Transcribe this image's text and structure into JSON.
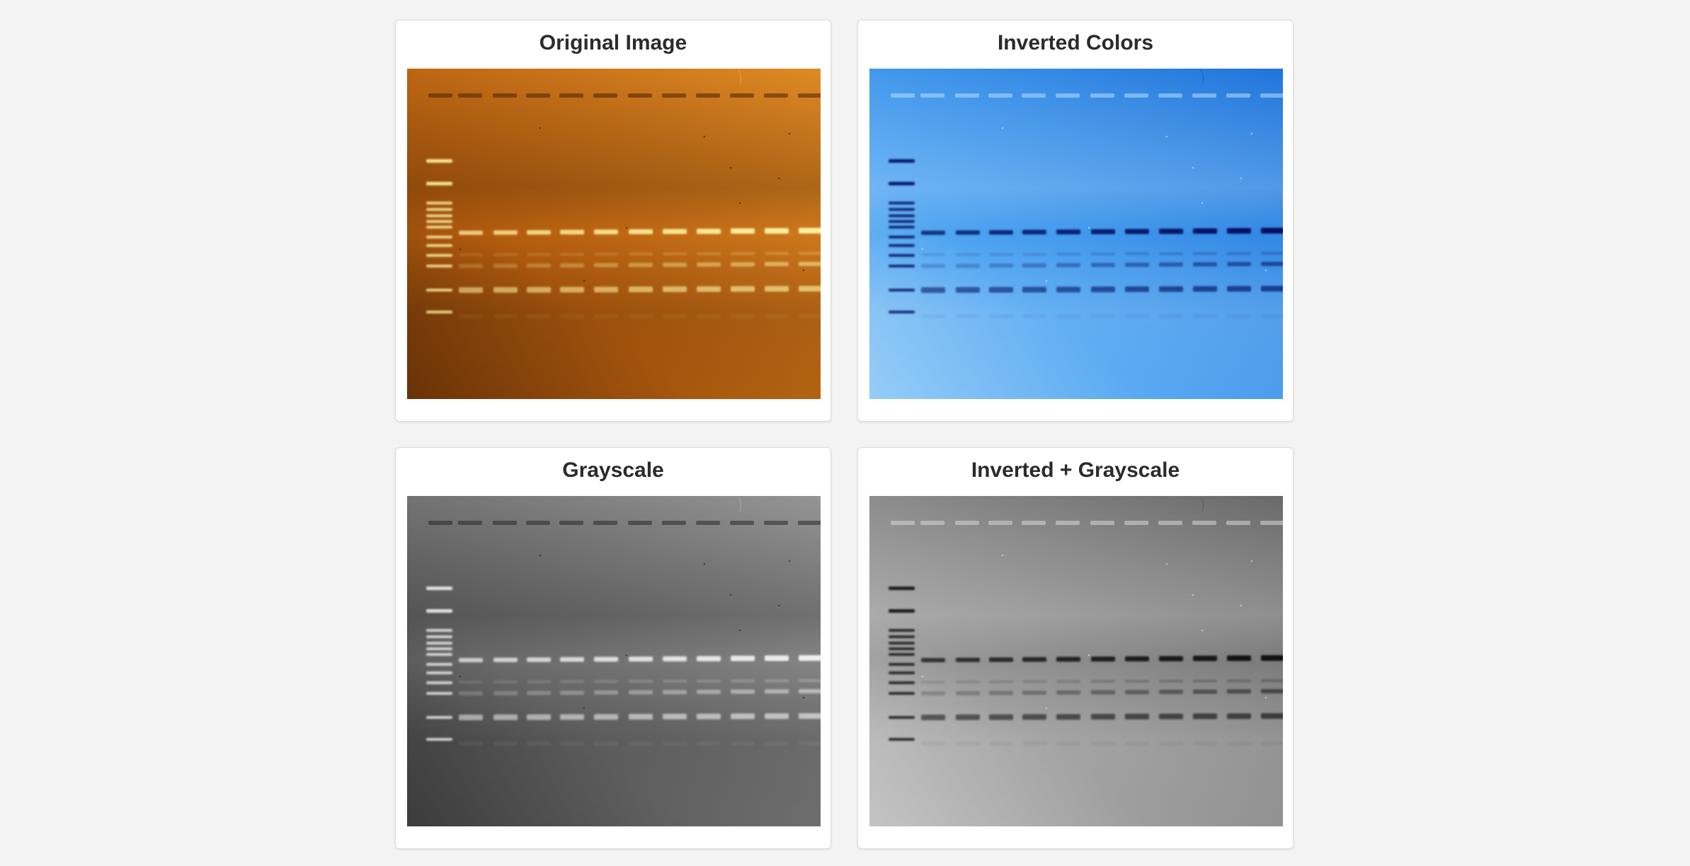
{
  "panels": [
    {
      "title": "Original Image"
    },
    {
      "title": "Inverted Colors"
    },
    {
      "title": "Grayscale"
    },
    {
      "title": "Inverted + Grayscale"
    }
  ],
  "colors": {
    "page_background": "#f3f3f3",
    "card_background": "#ffffff",
    "title_text": "#2b2b2b",
    "gel_orange": "#c8690f",
    "band_yellow": "#fff2a0"
  }
}
